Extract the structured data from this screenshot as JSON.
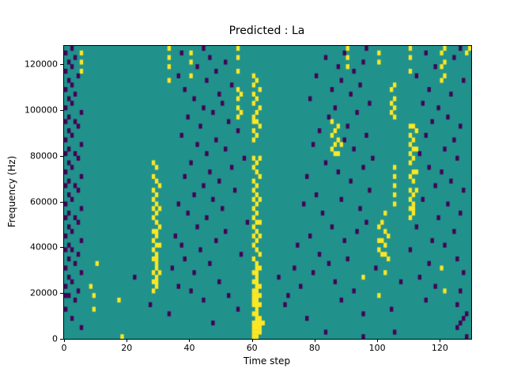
{
  "chart_data": {
    "type": "heatmap",
    "title": "Predicted : La",
    "xlabel": "Time step",
    "ylabel": "Frequency (Hz)",
    "x_range": [
      0,
      130
    ],
    "y_range": [
      0,
      128000
    ],
    "x_ticks": [
      0,
      20,
      40,
      60,
      80,
      100,
      120
    ],
    "y_ticks": [
      0,
      20000,
      40000,
      60000,
      80000,
      100000,
      120000
    ],
    "grid": false,
    "legend": "none",
    "n_cols": 130,
    "n_rows": 64,
    "row_height_hz": 2000,
    "palette": {
      "background": "#21918c",
      "high": "#fde725",
      "low": "#440154"
    },
    "rows_legend": "Each row is one 2000 Hz frequency bin from bottom (f = bin start in Hz). y = time-step columns rendered yellow (high class), p = columns rendered dark purple (low class); all remaining cells are the teal background (mid class). Cell positions are approximate readings of the scattered spectrogram pattern.",
    "rows": [
      {
        "f": 0,
        "y": [
          18,
          60,
          61
        ],
        "p": [
          95,
          128
        ]
      },
      {
        "f": 2000,
        "y": [
          60,
          61,
          62
        ],
        "p": [
          83,
          105
        ]
      },
      {
        "f": 4000,
        "y": [
          60,
          61,
          62
        ],
        "p": [
          5,
          125
        ]
      },
      {
        "f": 6000,
        "y": [
          60,
          61,
          62,
          63
        ],
        "p": [
          47,
          126
        ]
      },
      {
        "f": 8000,
        "y": [
          61,
          62
        ],
        "p": [
          2,
          77,
          127
        ]
      },
      {
        "f": 10000,
        "y": [
          60,
          61
        ],
        "p": [
          33,
          95,
          128
        ]
      },
      {
        "f": 12000,
        "y": [
          9,
          61
        ],
        "p": [
          0,
          55,
          104
        ]
      },
      {
        "f": 14000,
        "y": [
          60,
          61,
          62
        ],
        "p": [
          27,
          70,
          125
        ]
      },
      {
        "f": 16000,
        "y": [
          17,
          60,
          61
        ],
        "p": [
          3,
          44,
          88,
          115
        ]
      },
      {
        "f": 18000,
        "y": [
          9,
          60,
          61,
          62,
          100
        ],
        "p": [
          0,
          1,
          52,
          71
        ]
      },
      {
        "f": 20000,
        "y": [
          28,
          60,
          61,
          121
        ],
        "p": [
          4,
          40,
          92,
          126
        ]
      },
      {
        "f": 22000,
        "y": [
          8,
          29,
          61,
          62
        ],
        "p": [
          0,
          36,
          75,
          118
        ]
      },
      {
        "f": 24000,
        "y": [
          28,
          29,
          60,
          61
        ],
        "p": [
          2,
          49,
          86,
          107
        ]
      },
      {
        "f": 26000,
        "y": [
          29,
          61,
          95
        ],
        "p": [
          1,
          22,
          68,
          113
        ]
      },
      {
        "f": 28000,
        "y": [
          28,
          30,
          60,
          61,
          102
        ],
        "p": [
          5,
          41,
          79,
          127
        ]
      },
      {
        "f": 30000,
        "y": [
          29,
          61,
          62,
          120
        ],
        "p": [
          0,
          34,
          73,
          99
        ]
      },
      {
        "f": 32000,
        "y": [
          10,
          29,
          61
        ],
        "p": [
          3,
          46,
          84,
          116
        ]
      },
      {
        "f": 34000,
        "y": [
          28,
          29,
          60,
          103
        ],
        "p": [
          1,
          38,
          90,
          125
        ]
      },
      {
        "f": 36000,
        "y": [
          29,
          62,
          101,
          102
        ],
        "p": [
          4,
          56,
          81
        ]
      },
      {
        "f": 38000,
        "y": [
          28,
          61,
          100
        ],
        "p": [
          0,
          2,
          43,
          110
        ]
      },
      {
        "f": 40000,
        "y": [
          29,
          30,
          60,
          102
        ],
        "p": [
          1,
          37,
          74,
          121
        ]
      },
      {
        "f": 42000,
        "y": [
          28,
          61,
          100,
          101
        ],
        "p": [
          5,
          48,
          89,
          117
        ]
      },
      {
        "f": 44000,
        "y": [
          29,
          60,
          62,
          103
        ],
        "p": [
          0,
          35,
          78
        ]
      },
      {
        "f": 46000,
        "y": [
          28,
          29,
          61,
          102
        ],
        "p": [
          2,
          51,
          93,
          124
        ]
      },
      {
        "f": 48000,
        "y": [
          30,
          60,
          100
        ],
        "p": [
          1,
          42,
          85,
          112
        ]
      },
      {
        "f": 50000,
        "y": [
          29,
          61,
          62,
          101
        ],
        "p": [
          4,
          58,
          96
        ]
      },
      {
        "f": 52000,
        "y": [
          28,
          60,
          110
        ],
        "p": [
          0,
          3,
          45,
          119
        ]
      },
      {
        "f": 54000,
        "y": [
          29,
          61,
          102,
          111
        ],
        "p": [
          1,
          39,
          82,
          126
        ]
      },
      {
        "f": 56000,
        "y": [
          28,
          30,
          60,
          110,
          111
        ],
        "p": [
          5,
          50,
          94
        ]
      },
      {
        "f": 58000,
        "y": [
          29,
          61,
          105,
          111
        ],
        "p": [
          0,
          36,
          76,
          122
        ]
      },
      {
        "f": 60000,
        "y": [
          28,
          60,
          62,
          110
        ],
        "p": [
          2,
          47,
          88,
          114
        ]
      },
      {
        "f": 62000,
        "y": [
          29,
          61,
          105,
          111
        ],
        "p": [
          1,
          41,
          80
        ]
      },
      {
        "f": 64000,
        "y": [
          28,
          60,
          110,
          112
        ],
        "p": [
          4,
          54,
          97,
          127
        ]
      },
      {
        "f": 66000,
        "y": [
          30,
          61,
          105
        ],
        "p": [
          0,
          3,
          44,
          118
        ]
      },
      {
        "f": 68000,
        "y": [
          29,
          60,
          111
        ],
        "p": [
          1,
          49,
          91,
          123
        ]
      },
      {
        "f": 70000,
        "y": [
          28,
          62,
          105,
          110
        ],
        "p": [
          5,
          38,
          77
        ]
      },
      {
        "f": 72000,
        "y": [
          61,
          111,
          112
        ],
        "p": [
          0,
          46,
          87,
          120
        ]
      },
      {
        "f": 74000,
        "y": [
          29,
          60,
          105
        ],
        "p": [
          2,
          53,
          95,
          116
        ]
      },
      {
        "f": 76000,
        "y": [
          28,
          61,
          110
        ],
        "p": [
          1,
          40,
          83
        ]
      },
      {
        "f": 78000,
        "y": [
          60,
          62,
          111
        ],
        "p": [
          4,
          57,
          98,
          125
        ]
      },
      {
        "f": 80000,
        "y": [
          86,
          87,
          110
        ],
        "p": [
          0,
          3,
          45,
          113
        ]
      },
      {
        "f": 82000,
        "y": [
          85,
          111,
          112
        ],
        "p": [
          1,
          51,
          92,
          121
        ]
      },
      {
        "f": 84000,
        "y": [
          86,
          88,
          110
        ],
        "p": [
          5,
          42,
          79
        ]
      },
      {
        "f": 86000,
        "y": [
          60,
          87,
          111
        ],
        "p": [
          0,
          48,
          89,
          124
        ]
      },
      {
        "f": 88000,
        "y": [
          61,
          85,
          110
        ],
        "p": [
          2,
          37,
          96,
          115
        ]
      },
      {
        "f": 90000,
        "y": [
          60,
          86,
          112
        ],
        "p": [
          1,
          55,
          81
        ]
      },
      {
        "f": 92000,
        "y": [
          62,
          87,
          110,
          111
        ],
        "p": [
          4,
          43,
          90,
          126
        ]
      },
      {
        "f": 94000,
        "y": [
          60,
          61,
          85
        ],
        "p": [
          0,
          3,
          52,
          117
        ]
      },
      {
        "f": 96000,
        "y": [
          55,
          60,
          105
        ],
        "p": [
          1,
          39,
          84,
          122
        ]
      },
      {
        "f": 98000,
        "y": [
          56,
          61,
          104
        ],
        "p": [
          5,
          47,
          93
        ]
      },
      {
        "f": 100000,
        "y": [
          55,
          62,
          105
        ],
        "p": [
          0,
          44,
          86,
          119
        ]
      },
      {
        "f": 102000,
        "y": [
          60,
          104
        ],
        "p": [
          2,
          50,
          97,
          114
        ]
      },
      {
        "f": 104000,
        "y": [
          55,
          61,
          105
        ],
        "p": [
          1,
          41,
          78
        ]
      },
      {
        "f": 106000,
        "y": [
          56,
          60
        ],
        "p": [
          3,
          49,
          91,
          123
        ]
      },
      {
        "f": 108000,
        "y": [
          55,
          62,
          104
        ],
        "p": [
          0,
          38,
          85,
          116
        ]
      },
      {
        "f": 110000,
        "y": [
          60,
          105
        ],
        "p": [
          2,
          53,
          94
        ]
      },
      {
        "f": 112000,
        "y": [
          33,
          61,
          120
        ],
        "p": [
          1,
          45,
          88,
          127
        ]
      },
      {
        "f": 114000,
        "y": [
          40,
          60,
          121
        ],
        "p": [
          4,
          36,
          80,
          112
        ]
      },
      {
        "f": 116000,
        "y": [
          5,
          55,
          110
        ],
        "p": [
          0,
          48,
          92
        ]
      },
      {
        "f": 118000,
        "y": [
          33,
          90,
          120
        ],
        "p": [
          2,
          42,
          87,
          118
        ]
      },
      {
        "f": 120000,
        "y": [
          5,
          40,
          100,
          121
        ],
        "p": [
          1,
          51,
          95
        ]
      },
      {
        "f": 122000,
        "y": [
          33,
          55,
          90,
          110
        ],
        "p": [
          3,
          46,
          83,
          124
        ]
      },
      {
        "f": 124000,
        "y": [
          5,
          40,
          100,
          120,
          128
        ],
        "p": [
          0,
          37,
          89,
          115
        ]
      },
      {
        "f": 126000,
        "y": [
          33,
          55,
          90,
          110,
          121,
          129
        ],
        "p": [
          2,
          44,
          96,
          126
        ]
      }
    ]
  }
}
